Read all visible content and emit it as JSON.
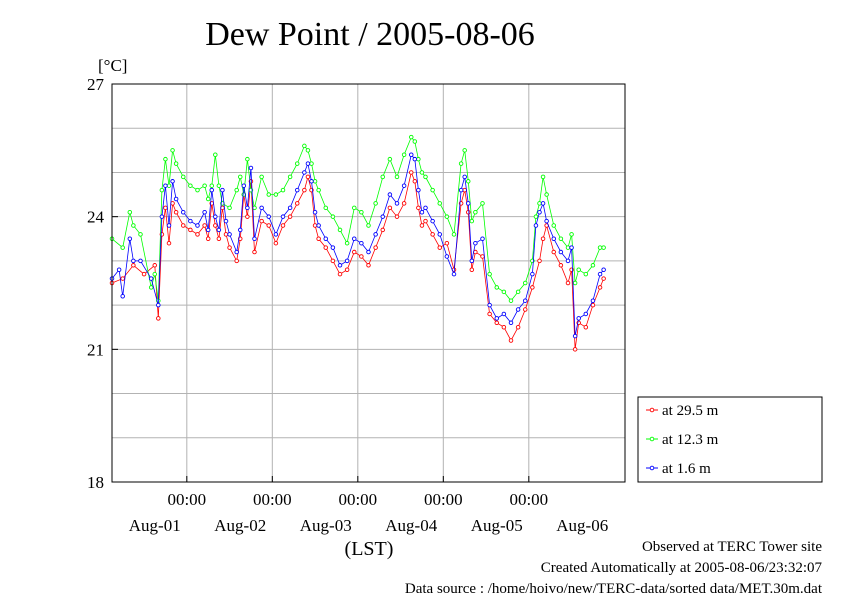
{
  "chart_data": {
    "type": "line",
    "title": "Dew Point / 2005-08-06",
    "unit": "[°C]",
    "xlabel": "(LST)",
    "ylim": [
      18,
      27
    ],
    "yticks": [
      18,
      21,
      24,
      27
    ],
    "xlim": [
      0,
      144
    ],
    "x_time_ticks": [
      {
        "x": 21,
        "label": "00:00"
      },
      {
        "x": 45,
        "label": "00:00"
      },
      {
        "x": 69,
        "label": "00:00"
      },
      {
        "x": 93,
        "label": "00:00"
      },
      {
        "x": 117,
        "label": "00:00"
      }
    ],
    "x_date_labels": [
      {
        "x": 12,
        "label": "Aug-01"
      },
      {
        "x": 36,
        "label": "Aug-02"
      },
      {
        "x": 60,
        "label": "Aug-03"
      },
      {
        "x": 84,
        "label": "Aug-04"
      },
      {
        "x": 108,
        "label": "Aug-05"
      },
      {
        "x": 132,
        "label": "Aug-06"
      }
    ],
    "grid": true,
    "legend_position": "right-bottom",
    "series": [
      {
        "name": "at 29.5 m",
        "color": "#ff0000",
        "points": [
          [
            0,
            22.5
          ],
          [
            3,
            22.6
          ],
          [
            6,
            22.9
          ],
          [
            9,
            22.7
          ],
          [
            12,
            22.9
          ],
          [
            13,
            21.7
          ],
          [
            14,
            23.6
          ],
          [
            15,
            24.2
          ],
          [
            16,
            23.4
          ],
          [
            17,
            24.3
          ],
          [
            18,
            24.1
          ],
          [
            20,
            23.8
          ],
          [
            22,
            23.7
          ],
          [
            24,
            23.6
          ],
          [
            26,
            23.8
          ],
          [
            27,
            23.5
          ],
          [
            28,
            24.3
          ],
          [
            29,
            23.8
          ],
          [
            30,
            23.5
          ],
          [
            31,
            24.2
          ],
          [
            32,
            23.6
          ],
          [
            33,
            23.3
          ],
          [
            35,
            23.0
          ],
          [
            36,
            23.5
          ],
          [
            37,
            24.5
          ],
          [
            38,
            24.0
          ],
          [
            39,
            24.8
          ],
          [
            40,
            23.2
          ],
          [
            42,
            23.9
          ],
          [
            44,
            23.8
          ],
          [
            46,
            23.4
          ],
          [
            48,
            23.8
          ],
          [
            50,
            24.0
          ],
          [
            52,
            24.3
          ],
          [
            54,
            24.6
          ],
          [
            55,
            24.9
          ],
          [
            56,
            24.6
          ],
          [
            57,
            23.8
          ],
          [
            58,
            23.5
          ],
          [
            60,
            23.3
          ],
          [
            62,
            23.0
          ],
          [
            64,
            22.7
          ],
          [
            66,
            22.8
          ],
          [
            68,
            23.2
          ],
          [
            70,
            23.1
          ],
          [
            72,
            22.9
          ],
          [
            74,
            23.3
          ],
          [
            76,
            23.7
          ],
          [
            78,
            24.2
          ],
          [
            80,
            24.0
          ],
          [
            82,
            24.3
          ],
          [
            84,
            25.0
          ],
          [
            85,
            24.8
          ],
          [
            86,
            24.2
          ],
          [
            87,
            23.8
          ],
          [
            88,
            23.9
          ],
          [
            90,
            23.6
          ],
          [
            92,
            23.3
          ],
          [
            94,
            23.4
          ],
          [
            96,
            22.8
          ],
          [
            98,
            24.3
          ],
          [
            99,
            24.6
          ],
          [
            100,
            24.1
          ],
          [
            101,
            22.8
          ],
          [
            102,
            23.2
          ],
          [
            104,
            23.1
          ],
          [
            106,
            21.8
          ],
          [
            108,
            21.6
          ],
          [
            110,
            21.5
          ],
          [
            112,
            21.2
          ],
          [
            114,
            21.5
          ],
          [
            116,
            21.9
          ],
          [
            118,
            22.4
          ],
          [
            120,
            23.0
          ],
          [
            121,
            23.5
          ],
          [
            122,
            23.8
          ],
          [
            124,
            23.2
          ],
          [
            126,
            22.9
          ],
          [
            128,
            22.5
          ],
          [
            129,
            22.8
          ],
          [
            130,
            21.0
          ],
          [
            131,
            21.6
          ],
          [
            133,
            21.5
          ],
          [
            135,
            22.0
          ],
          [
            137,
            22.4
          ],
          [
            138,
            22.6
          ]
        ]
      },
      {
        "name": "at 12.3 m",
        "color": "#00ff00",
        "points": [
          [
            0,
            23.5
          ],
          [
            3,
            23.3
          ],
          [
            5,
            24.1
          ],
          [
            6,
            23.8
          ],
          [
            8,
            23.6
          ],
          [
            11,
            22.4
          ],
          [
            12,
            22.7
          ],
          [
            13,
            22.1
          ],
          [
            14,
            24.6
          ],
          [
            15,
            25.3
          ],
          [
            16,
            24.7
          ],
          [
            17,
            25.5
          ],
          [
            18,
            25.2
          ],
          [
            20,
            24.9
          ],
          [
            22,
            24.7
          ],
          [
            24,
            24.6
          ],
          [
            26,
            24.7
          ],
          [
            27,
            24.4
          ],
          [
            28,
            24.7
          ],
          [
            29,
            25.4
          ],
          [
            30,
            24.7
          ],
          [
            31,
            24.3
          ],
          [
            33,
            24.2
          ],
          [
            35,
            24.6
          ],
          [
            36,
            24.9
          ],
          [
            37,
            24.5
          ],
          [
            38,
            25.3
          ],
          [
            39,
            24.6
          ],
          [
            40,
            24.2
          ],
          [
            42,
            24.9
          ],
          [
            44,
            24.5
          ],
          [
            46,
            24.5
          ],
          [
            48,
            24.6
          ],
          [
            50,
            24.9
          ],
          [
            52,
            25.2
          ],
          [
            54,
            25.6
          ],
          [
            55,
            25.5
          ],
          [
            56,
            25.2
          ],
          [
            57,
            24.8
          ],
          [
            58,
            24.6
          ],
          [
            60,
            24.2
          ],
          [
            62,
            24.0
          ],
          [
            64,
            23.7
          ],
          [
            66,
            23.4
          ],
          [
            68,
            24.2
          ],
          [
            70,
            24.1
          ],
          [
            72,
            23.8
          ],
          [
            74,
            24.3
          ],
          [
            76,
            24.9
          ],
          [
            78,
            25.3
          ],
          [
            80,
            24.9
          ],
          [
            82,
            25.4
          ],
          [
            84,
            25.8
          ],
          [
            85,
            25.7
          ],
          [
            86,
            25.3
          ],
          [
            87,
            25.0
          ],
          [
            88,
            24.9
          ],
          [
            90,
            24.6
          ],
          [
            92,
            24.3
          ],
          [
            94,
            24.0
          ],
          [
            96,
            23.6
          ],
          [
            98,
            25.2
          ],
          [
            99,
            25.5
          ],
          [
            100,
            24.8
          ],
          [
            101,
            23.9
          ],
          [
            102,
            24.1
          ],
          [
            104,
            24.3
          ],
          [
            106,
            22.7
          ],
          [
            108,
            22.4
          ],
          [
            110,
            22.3
          ],
          [
            112,
            22.1
          ],
          [
            114,
            22.3
          ],
          [
            116,
            22.5
          ],
          [
            118,
            23.0
          ],
          [
            119,
            24.0
          ],
          [
            120,
            24.3
          ],
          [
            121,
            24.9
          ],
          [
            122,
            24.5
          ],
          [
            124,
            23.8
          ],
          [
            126,
            23.5
          ],
          [
            128,
            23.3
          ],
          [
            129,
            23.6
          ],
          [
            130,
            22.5
          ],
          [
            131,
            22.8
          ],
          [
            133,
            22.7
          ],
          [
            135,
            22.9
          ],
          [
            137,
            23.3
          ],
          [
            138,
            23.3
          ]
        ]
      },
      {
        "name": "at 1.6 m",
        "color": "#0000ff",
        "points": [
          [
            0,
            22.6
          ],
          [
            2,
            22.8
          ],
          [
            3,
            22.2
          ],
          [
            5,
            23.5
          ],
          [
            6,
            23.0
          ],
          [
            8,
            23.0
          ],
          [
            11,
            22.6
          ],
          [
            13,
            22.0
          ],
          [
            14,
            24.0
          ],
          [
            15,
            24.7
          ],
          [
            16,
            23.8
          ],
          [
            17,
            24.8
          ],
          [
            18,
            24.4
          ],
          [
            20,
            24.1
          ],
          [
            22,
            23.9
          ],
          [
            24,
            23.8
          ],
          [
            26,
            24.1
          ],
          [
            27,
            23.7
          ],
          [
            28,
            24.6
          ],
          [
            29,
            24.0
          ],
          [
            30,
            23.7
          ],
          [
            31,
            24.6
          ],
          [
            32,
            23.9
          ],
          [
            33,
            23.6
          ],
          [
            35,
            23.2
          ],
          [
            36,
            23.7
          ],
          [
            37,
            24.7
          ],
          [
            38,
            24.2
          ],
          [
            39,
            25.1
          ],
          [
            40,
            23.5
          ],
          [
            42,
            24.2
          ],
          [
            44,
            24.0
          ],
          [
            46,
            23.6
          ],
          [
            48,
            24.0
          ],
          [
            50,
            24.2
          ],
          [
            52,
            24.6
          ],
          [
            54,
            25.0
          ],
          [
            55,
            25.2
          ],
          [
            56,
            24.8
          ],
          [
            57,
            24.1
          ],
          [
            58,
            23.8
          ],
          [
            60,
            23.5
          ],
          [
            62,
            23.3
          ],
          [
            64,
            22.9
          ],
          [
            66,
            23.0
          ],
          [
            68,
            23.5
          ],
          [
            70,
            23.4
          ],
          [
            72,
            23.2
          ],
          [
            74,
            23.6
          ],
          [
            76,
            24.0
          ],
          [
            78,
            24.5
          ],
          [
            80,
            24.3
          ],
          [
            82,
            24.7
          ],
          [
            84,
            25.4
          ],
          [
            85,
            25.3
          ],
          [
            86,
            24.6
          ],
          [
            87,
            24.1
          ],
          [
            88,
            24.2
          ],
          [
            90,
            23.9
          ],
          [
            92,
            23.6
          ],
          [
            94,
            23.1
          ],
          [
            96,
            22.7
          ],
          [
            98,
            24.6
          ],
          [
            99,
            24.9
          ],
          [
            100,
            24.3
          ],
          [
            101,
            23.0
          ],
          [
            102,
            23.4
          ],
          [
            104,
            23.5
          ],
          [
            106,
            22.0
          ],
          [
            108,
            21.7
          ],
          [
            110,
            21.8
          ],
          [
            112,
            21.6
          ],
          [
            114,
            21.9
          ],
          [
            116,
            22.1
          ],
          [
            118,
            22.7
          ],
          [
            119,
            23.8
          ],
          [
            120,
            24.1
          ],
          [
            121,
            24.3
          ],
          [
            122,
            23.9
          ],
          [
            124,
            23.5
          ],
          [
            126,
            23.2
          ],
          [
            128,
            23.0
          ],
          [
            129,
            23.3
          ],
          [
            130,
            21.3
          ],
          [
            131,
            21.7
          ],
          [
            133,
            21.8
          ],
          [
            135,
            22.1
          ],
          [
            137,
            22.7
          ],
          [
            138,
            22.8
          ]
        ]
      }
    ]
  },
  "footer": {
    "line1": "Observed at TERC Tower site",
    "line2": "Created Automatically at 2005-08-06/23:32:07",
    "line3": "Data source : /home/hoivo/new/TERC-data/sorted  data/MET.30m.dat"
  }
}
